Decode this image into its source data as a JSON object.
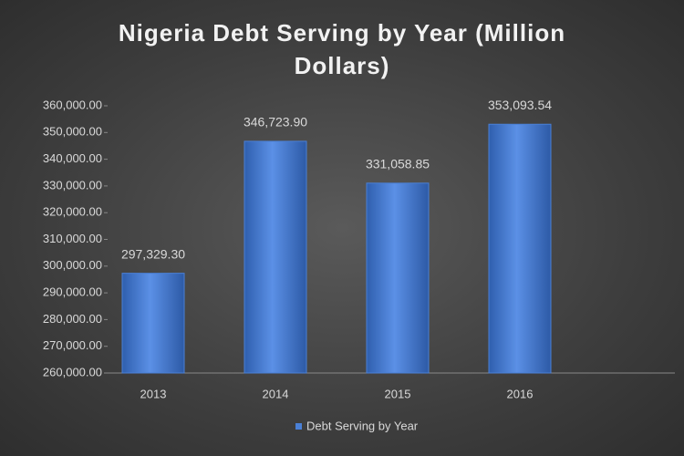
{
  "chart_data": {
    "type": "bar",
    "title": "Nigeria Debt Serving by Year (Million Dollars)",
    "categories": [
      "2013",
      "2014",
      "2015",
      "2016"
    ],
    "series": [
      {
        "name": "Debt Serving by Year",
        "color": "#4a80d6",
        "values": [
          297329.3,
          346723.9,
          331058.85,
          353093.54
        ],
        "value_labels": [
          "297,329.30",
          "346,723.90",
          "331,058.85",
          "353,093.54"
        ]
      }
    ],
    "ylim": [
      260000,
      360000
    ],
    "yticks": [
      {
        "value": 260000,
        "label": "260,000.00"
      },
      {
        "value": 270000,
        "label": "270,000.00"
      },
      {
        "value": 280000,
        "label": "280,000.00"
      },
      {
        "value": 290000,
        "label": "290,000.00"
      },
      {
        "value": 300000,
        "label": "300,000.00"
      },
      {
        "value": 310000,
        "label": "310,000.00"
      },
      {
        "value": 320000,
        "label": "320,000.00"
      },
      {
        "value": 330000,
        "label": "330,000.00"
      },
      {
        "value": 340000,
        "label": "340,000.00"
      },
      {
        "value": 350000,
        "label": "350,000.00"
      },
      {
        "value": 360000,
        "label": "360,000.00"
      }
    ],
    "legend": "bottom"
  }
}
